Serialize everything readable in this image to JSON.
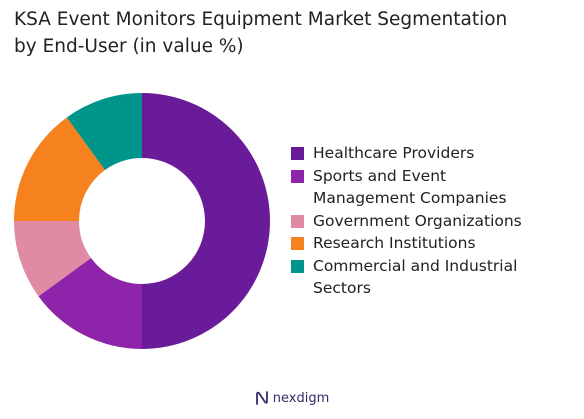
{
  "chart_data": {
    "type": "pie",
    "donut": true,
    "title_lines": [
      "KSA Event Monitors Equipment Market Segmentation",
      "by End-User (in value %)"
    ],
    "categories": [
      "Healthcare Providers",
      "Sports and Event Management Companies",
      "Government Organizations",
      "Research Institutions",
      "Commercial and Industrial Sectors"
    ],
    "values": [
      50,
      15,
      10,
      15,
      10
    ],
    "colors": [
      "#6a1b9a",
      "#8e24aa",
      "#e08aa4",
      "#f5821f",
      "#00958a"
    ],
    "legend": {
      "placement": "right",
      "items": [
        {
          "label": "Healthcare Providers",
          "color": "#6a1b9a"
        },
        {
          "label": "Sports and Event",
          "label_cont": "Management Companies",
          "color": "#8e24aa"
        },
        {
          "label": "Government Organizations",
          "color": "#e08aa4"
        },
        {
          "label": "Research Institutions",
          "color": "#f5821f"
        },
        {
          "label": "Commercial and Industrial",
          "label_cont": "Sectors",
          "color": "#00958a"
        }
      ]
    }
  },
  "brand": {
    "name": "nexdigm",
    "color": "#3b2a6a",
    "icon": "nexdigm-logo-icon"
  }
}
